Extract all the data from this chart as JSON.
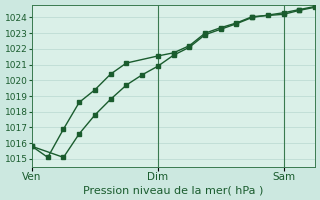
{
  "xlabel": "Pression niveau de la mer( hPa )",
  "background_color": "#cce8e0",
  "plot_bg_color": "#daf0e8",
  "grid_color": "#b8d8d0",
  "line_color": "#1a5c2e",
  "vline_color": "#3a7a50",
  "ylim_min": 1014.5,
  "ylim_max": 1024.8,
  "yticks": [
    1015,
    1016,
    1017,
    1018,
    1019,
    1020,
    1021,
    1022,
    1023,
    1024
  ],
  "xtick_positions": [
    0,
    8,
    16
  ],
  "xtick_labels": [
    "Ven",
    "Dim",
    "Sam"
  ],
  "vlines": [
    8,
    16
  ],
  "series1_x": [
    0,
    1,
    2,
    3,
    4,
    5,
    6,
    8,
    9,
    10,
    11,
    12,
    13,
    14,
    16,
    17,
    18
  ],
  "series1_y": [
    1015.8,
    1015.1,
    1016.9,
    1018.6,
    1019.4,
    1020.4,
    1021.1,
    1021.55,
    1021.75,
    1022.2,
    1023.0,
    1023.35,
    1023.65,
    1024.05,
    1024.2,
    1024.45,
    1024.65
  ],
  "series2_x": [
    0,
    2,
    3,
    4,
    5,
    6,
    7,
    8,
    9,
    10,
    11,
    12,
    13,
    14,
    15,
    16,
    17,
    18
  ],
  "series2_y": [
    1015.8,
    1015.1,
    1016.6,
    1017.8,
    1018.8,
    1019.7,
    1020.35,
    1020.9,
    1021.6,
    1022.1,
    1022.9,
    1023.25,
    1023.6,
    1024.0,
    1024.15,
    1024.3,
    1024.5,
    1024.7
  ],
  "marker_size": 3.0,
  "line_width": 1.0,
  "xlabel_fontsize": 8,
  "ytick_fontsize": 6.5,
  "xtick_fontsize": 7.5
}
